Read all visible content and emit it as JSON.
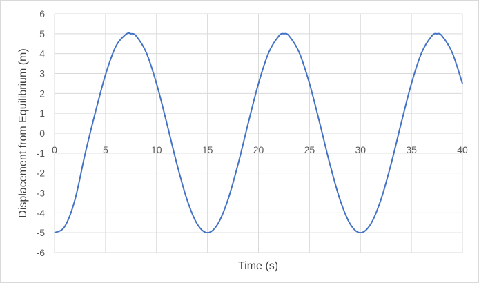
{
  "chart_data": {
    "type": "line",
    "title": "",
    "xlabel": "Time (s)",
    "ylabel": "Displacement from Equilibrium (m)",
    "xlim": [
      0,
      40
    ],
    "ylim": [
      -6,
      6
    ],
    "x_ticks": [
      0,
      5,
      10,
      15,
      20,
      25,
      30,
      35,
      40
    ],
    "y_ticks": [
      -6,
      -5,
      -4,
      -3,
      -2,
      -1,
      0,
      1,
      2,
      3,
      4,
      5,
      6
    ],
    "grid": true,
    "legend": "none",
    "series_color": "#4472c4",
    "grid_color": "#d9d9d9",
    "series": [
      {
        "x": [
          0,
          1,
          2,
          3,
          4,
          5,
          6,
          7,
          7.5,
          8,
          9,
          10,
          11,
          12,
          13,
          14,
          15,
          16,
          17,
          18,
          19,
          20,
          21,
          22,
          22.5,
          23,
          24,
          25,
          26,
          27,
          28,
          29,
          30,
          31,
          32,
          33,
          34,
          35,
          36,
          37,
          37.5,
          38,
          39,
          40
        ],
        "values": [
          -5,
          -4.69,
          -3.35,
          -1.04,
          1.04,
          2.94,
          4.35,
          4.97,
          5,
          4.89,
          4.05,
          2.5,
          0.52,
          -1.55,
          -3.35,
          -4.57,
          -5,
          -4.57,
          -3.35,
          -1.55,
          0.52,
          2.5,
          4.05,
          4.89,
          5,
          4.89,
          4.05,
          2.5,
          0.52,
          -1.55,
          -3.35,
          -4.57,
          -5,
          -4.57,
          -3.35,
          -1.55,
          0.52,
          2.5,
          4.05,
          4.89,
          5,
          4.89,
          4.05,
          2.5
        ]
      }
    ]
  }
}
